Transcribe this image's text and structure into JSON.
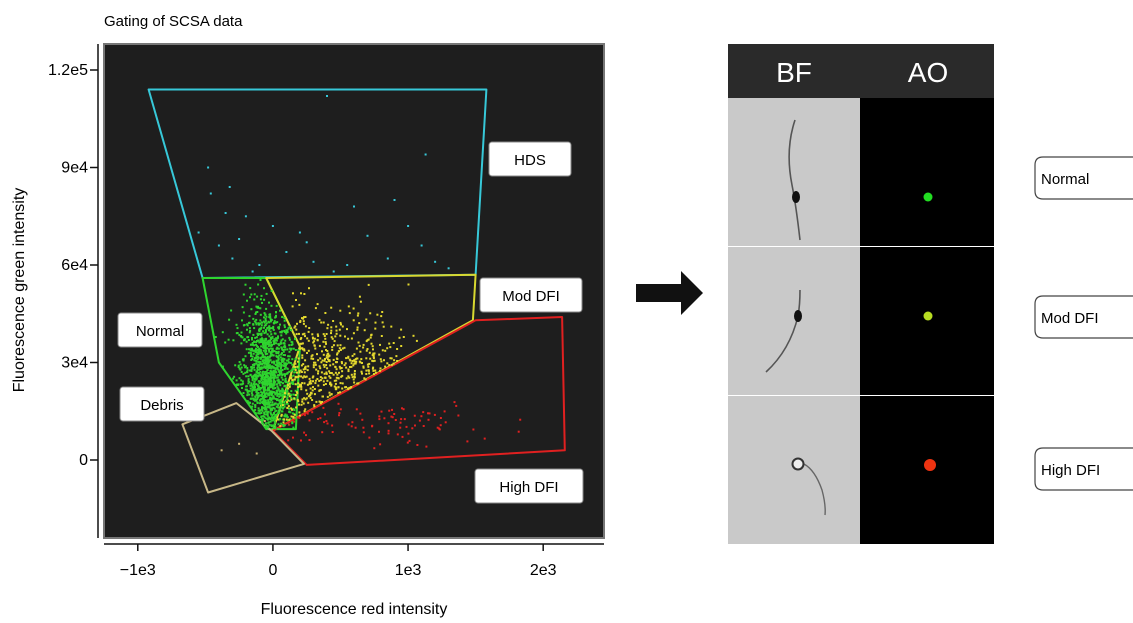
{
  "chart_data": {
    "type": "scatter",
    "title": "Gating of SCSA data",
    "xlabel": "Fluorescence red intensity",
    "ylabel": "Fluorescence green intensity",
    "xlim": [
      -1250,
      2450
    ],
    "ylim": [
      -24000,
      128000
    ],
    "xticks": [
      -1000,
      0,
      1000,
      2000
    ],
    "xtick_labels": [
      "−1e3",
      "0",
      "1e3",
      "2e3"
    ],
    "yticks": [
      0,
      30000,
      60000,
      90000,
      120000
    ],
    "ytick_labels": [
      "0",
      "3e4",
      "6e4",
      "9e4",
      "1.2e5"
    ],
    "background": "#1e1e1e",
    "grid": false,
    "gates": [
      {
        "name": "HDS",
        "color": "#37c8d8",
        "polygon": [
          [
            -920,
            114000
          ],
          [
            1580,
            114000
          ],
          [
            1500,
            57000
          ],
          [
            -520,
            56000
          ]
        ]
      },
      {
        "name": "Normal",
        "color": "#2fd52f",
        "polygon": [
          [
            -520,
            56000
          ],
          [
            -400,
            30000
          ],
          [
            -50,
            9500
          ],
          [
            170,
            9500
          ],
          [
            200,
            35000
          ],
          [
            -50,
            56000
          ]
        ]
      },
      {
        "name": "Mod DFI",
        "color": "#d8d830",
        "polygon": [
          [
            -50,
            56000
          ],
          [
            1500,
            57000
          ],
          [
            1480,
            43000
          ],
          [
            0,
            9000
          ],
          [
            200,
            35000
          ]
        ]
      },
      {
        "name": "High DFI",
        "color": "#e02020",
        "polygon": [
          [
            0,
            9000
          ],
          [
            1500,
            43000
          ],
          [
            2140,
            44000
          ],
          [
            2160,
            3000
          ],
          [
            250,
            -1500
          ]
        ]
      },
      {
        "name": "Debris",
        "color": "#c8b888",
        "polygon": [
          [
            -670,
            11000
          ],
          [
            -270,
            17500
          ],
          [
            -10,
            9000
          ],
          [
            230,
            -1200
          ],
          [
            -480,
            -10000
          ]
        ]
      }
    ],
    "series": [
      {
        "name": "HDS",
        "color": "#37c8d8",
        "points": [
          [
            400,
            112000
          ],
          [
            1130,
            94000
          ],
          [
            -480,
            90000
          ],
          [
            -460,
            82000
          ],
          [
            -320,
            84000
          ],
          [
            -200,
            75000
          ],
          [
            0,
            72000
          ],
          [
            200,
            70000
          ],
          [
            600,
            78000
          ],
          [
            900,
            80000
          ],
          [
            -550,
            70000
          ],
          [
            -400,
            66000
          ],
          [
            -300,
            62000
          ],
          [
            -100,
            60000
          ],
          [
            100,
            64000
          ],
          [
            300,
            61000
          ],
          [
            550,
            60000
          ],
          [
            850,
            62000
          ],
          [
            1100,
            66000
          ],
          [
            1300,
            59000
          ],
          [
            -250,
            68000
          ],
          [
            700,
            69000
          ],
          [
            1000,
            72000
          ],
          [
            -350,
            76000
          ],
          [
            -150,
            58000
          ],
          [
            450,
            58000
          ],
          [
            1200,
            61000
          ],
          [
            250,
            67000
          ]
        ]
      },
      {
        "name": "Normal",
        "color": "#2fd52f",
        "n": 1300,
        "center": [
          -40,
          24000
        ],
        "spread": [
          110,
          12000
        ]
      },
      {
        "name": "Mod DFI",
        "color": "#e3d82e",
        "n": 520,
        "center": [
          400,
          24000
        ],
        "spread": [
          380,
          11000
        ]
      },
      {
        "name": "High DFI",
        "color": "#e02020",
        "n": 95,
        "center": [
          650,
          11000
        ],
        "spread": [
          520,
          3500
        ]
      },
      {
        "name": "Debris",
        "color": "#c8b070",
        "points": [
          [
            -250,
            5000
          ],
          [
            -120,
            2000
          ],
          [
            -60,
            12000
          ],
          [
            -380,
            3000
          ]
        ]
      }
    ],
    "labels": [
      {
        "text": "HDS",
        "color": "#37c8d8"
      },
      {
        "text": "Mod DFI",
        "color": "#d8d830"
      },
      {
        "text": "Normal",
        "color": "#2fd52f"
      },
      {
        "text": "Debris",
        "color": "#c8b888"
      },
      {
        "text": "High DFI",
        "color": "#e02020"
      }
    ]
  },
  "arrow": {
    "color": "#111111"
  },
  "image_panel": {
    "columns": [
      "BF",
      "AO"
    ],
    "rows": [
      {
        "label": "Normal",
        "bf_cell": "sperm with long tail",
        "ao_color": "#22dd22"
      },
      {
        "label": "Mod DFI",
        "bf_cell": "sperm with curved tail",
        "ao_color": "#b8dd22"
      },
      {
        "label": "High DFI",
        "bf_cell": "round sperm head",
        "ao_color": "#ee3311"
      }
    ],
    "header_bg": "#2a2a2a",
    "bf_bg": "#c9c9c9",
    "ao_bg": "#000000"
  }
}
